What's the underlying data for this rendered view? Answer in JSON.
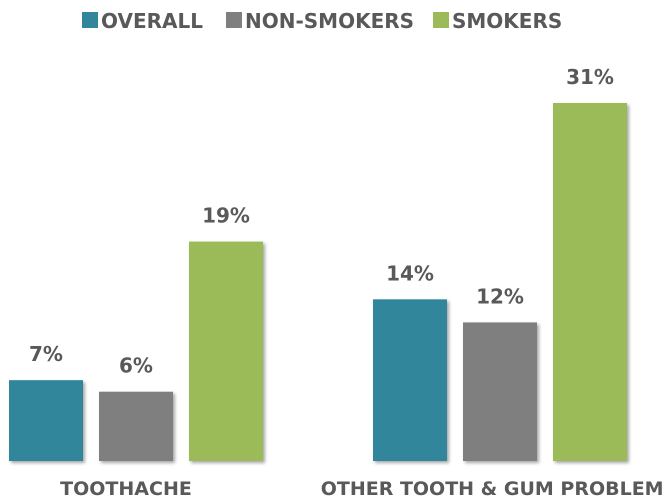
{
  "chart_data": {
    "type": "bar",
    "title": "",
    "xlabel": "",
    "ylabel": "",
    "ylim": [
      0,
      31
    ],
    "grid": false,
    "legend_position": "top",
    "categories": [
      "TOOTHACHE",
      "OTHER TOOTH & GUM PROBLEMS"
    ],
    "series": [
      {
        "name": "OVERALL",
        "values": [
          7,
          14
        ],
        "labels": [
          "7%",
          "14%"
        ],
        "color": "#31869b"
      },
      {
        "name": "NON-SMOKERS",
        "values": [
          6,
          12
        ],
        "labels": [
          "6%",
          "12%"
        ],
        "color": "#7f7f7f"
      },
      {
        "name": "SMOKERS",
        "values": [
          19,
          31
        ],
        "labels": [
          "19%",
          "31%"
        ],
        "color": "#9bbb59"
      }
    ]
  }
}
